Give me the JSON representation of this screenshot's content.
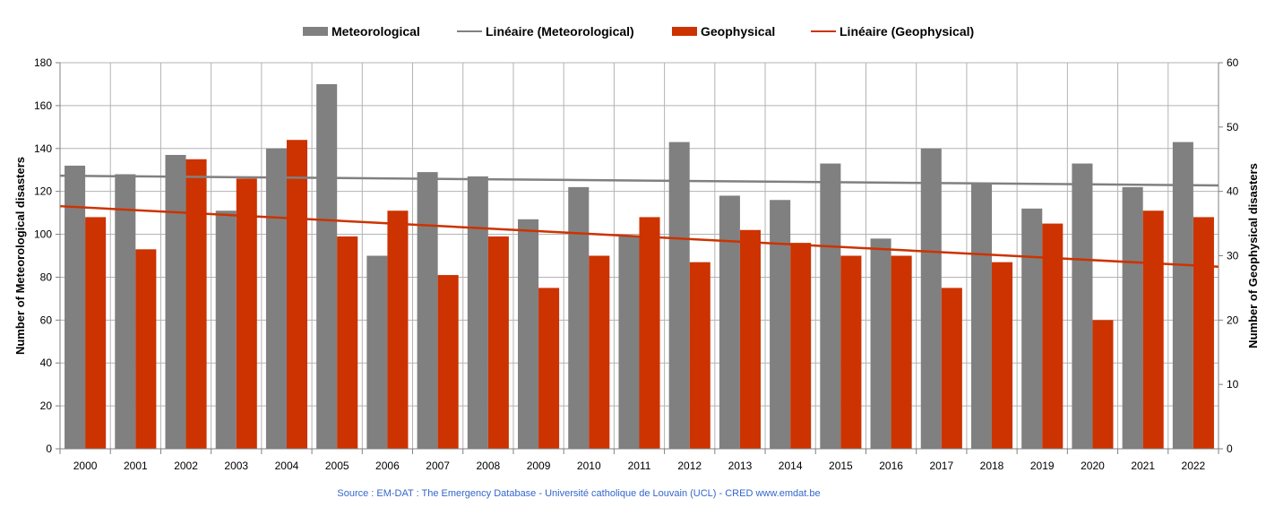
{
  "chart_data": {
    "type": "bar",
    "categories": [
      "2000",
      "2001",
      "2002",
      "2003",
      "2004",
      "2005",
      "2006",
      "2007",
      "2008",
      "2009",
      "2010",
      "2011",
      "2012",
      "2013",
      "2014",
      "2015",
      "2016",
      "2017",
      "2018",
      "2019",
      "2020",
      "2021",
      "2022"
    ],
    "series": [
      {
        "name": "Meteorological",
        "axis": "left",
        "color": "#808080",
        "values": [
          132,
          128,
          137,
          111,
          140,
          170,
          90,
          129,
          127,
          107,
          122,
          99,
          143,
          118,
          116,
          133,
          98,
          140,
          124,
          112,
          133,
          122,
          143
        ]
      },
      {
        "name": "Geophysical",
        "axis": "right",
        "color": "#cc3300",
        "values": [
          36,
          31,
          45,
          42,
          48,
          33,
          37,
          27,
          33,
          25,
          30,
          36,
          29,
          34,
          32,
          30,
          30,
          25,
          29,
          35,
          20,
          37,
          36
        ]
      }
    ],
    "trendlines": [
      {
        "name": "Linéaire (Meteorological)",
        "axis": "left",
        "color": "#808080",
        "start": 127.3,
        "end": 122.8
      },
      {
        "name": "Linéaire (Geophysical)",
        "axis": "right",
        "color": "#cc3300",
        "start": 37.7,
        "end": 28.3
      }
    ],
    "ylabel_left": "Number of Meteorological disasters",
    "ylabel_right": "Number of Geophysical disasters",
    "ylim_left": [
      0,
      180
    ],
    "ylim_right": [
      0,
      60
    ],
    "yticks_left": [
      "0",
      "20",
      "40",
      "60",
      "80",
      "100",
      "120",
      "140",
      "160",
      "180"
    ],
    "yticks_right": [
      "0",
      "10",
      "20",
      "30",
      "40",
      "50",
      "60"
    ],
    "grid": true,
    "legend_position": "top",
    "source": "Source : EM-DAT : The Emergency Database - Université catholique de Louvain (UCL) - CRED   www.emdat.be"
  }
}
